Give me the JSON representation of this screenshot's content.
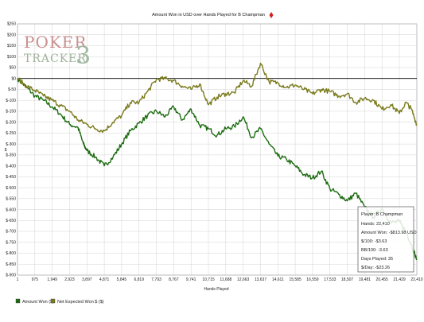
{
  "logo": {
    "word_top": "POKER",
    "word_bottom": "TRACKER",
    "version": "3"
  },
  "info_box": {
    "player": "Player: B Champman",
    "hands": "Hands: 22,410",
    "amount_won": "Amount Won: -$813.98 USD",
    "per_100": "$/100: -$3.63",
    "bb_per_100": "BB/100: -3.63",
    "days_played": "Days Played: 35",
    "per_day": "$/Day: -$23.26"
  },
  "colors": {
    "amount_won": "#1b6b0f",
    "ev_won": "#7a7a1c",
    "title_diamond": "#d42020",
    "grid": "#c8c8c8",
    "zero_line": "#000000"
  },
  "chart_data": {
    "type": "line",
    "title": "Amount Won in USD over Hands Played for B Champman",
    "xlabel": "Hands Played",
    "ylabel": "$",
    "xlim": [
      1,
      22410
    ],
    "ylim": [
      -900,
      250
    ],
    "grid": true,
    "legend_position": "bottom-left",
    "x_ticks": [
      1,
      975,
      1949,
      2923,
      3897,
      4871,
      5845,
      6819,
      7793,
      8767,
      9741,
      10715,
      11688,
      12663,
      13637,
      14611,
      15585,
      16559,
      17533,
      18507,
      19481,
      20455,
      21429,
      22410
    ],
    "x_tick_labels": [
      "1",
      "975",
      "1,949",
      "2,923",
      "3,897",
      "4,871",
      "5,845",
      "6,819",
      "7,793",
      "8,767",
      "9,741",
      "10,715",
      "11,688",
      "12,663",
      "13,637",
      "14,611",
      "15,585",
      "16,559",
      "17,533",
      "18,507",
      "19,481",
      "20,455",
      "21,429",
      "22,410"
    ],
    "y_ticks": [
      250,
      200,
      150,
      100,
      50,
      0,
      -50,
      -100,
      -150,
      -200,
      -250,
      -300,
      -350,
      -400,
      -450,
      -500,
      -550,
      -600,
      -650,
      -700,
      -750,
      -800,
      -850,
      -900
    ],
    "y_tick_labels": [
      "$250",
      "$200",
      "$150",
      "$100",
      "$50",
      "$0",
      "$-50",
      "$-100",
      "$-150",
      "$-200",
      "$-250",
      "$-300",
      "$-350",
      "$-400",
      "$-450",
      "$-500",
      "$-550",
      "$-600",
      "$-650",
      "$-700",
      "$-750",
      "$-800",
      "$-850",
      "$-900"
    ],
    "series": [
      {
        "name": "Amount Won ($)",
        "x": [
          1,
          500,
          975,
          1460,
          1949,
          2430,
          2923,
          3400,
          3700,
          3897,
          4380,
          4871,
          5360,
          5845,
          6330,
          6819,
          7300,
          7793,
          8280,
          8767,
          9250,
          9741,
          10230,
          10715,
          11200,
          11688,
          12170,
          12663,
          13150,
          13637,
          14120,
          14611,
          15100,
          15585,
          16070,
          16559,
          17050,
          17533,
          18020,
          18507,
          18990,
          19481,
          19970,
          20455,
          20950,
          21429,
          21800,
          22100,
          22410
        ],
        "y": [
          0,
          -40,
          -80,
          -100,
          -130,
          -165,
          -210,
          -225,
          -300,
          -330,
          -360,
          -400,
          -360,
          -300,
          -240,
          -205,
          -170,
          -150,
          -175,
          -130,
          -190,
          -140,
          -215,
          -230,
          -260,
          -230,
          -220,
          -175,
          -270,
          -230,
          -300,
          -355,
          -370,
          -400,
          -440,
          -455,
          -425,
          -505,
          -530,
          -560,
          -525,
          -590,
          -635,
          -595,
          -660,
          -655,
          -700,
          -760,
          -830
        ]
      },
      {
        "name": "Net Expected Won $ ($)",
        "x": [
          1,
          500,
          975,
          1460,
          1949,
          2430,
          2923,
          3400,
          3897,
          4380,
          4871,
          5360,
          5845,
          6330,
          6819,
          7300,
          7793,
          8280,
          8767,
          9250,
          9741,
          10230,
          10715,
          11200,
          11688,
          12170,
          12663,
          13150,
          13637,
          14120,
          14611,
          15100,
          15585,
          16070,
          16559,
          17050,
          17533,
          18020,
          18507,
          18990,
          19481,
          19970,
          20455,
          20950,
          21429,
          21800,
          22100,
          22410
        ],
        "y": [
          0,
          -35,
          -55,
          -80,
          -100,
          -125,
          -150,
          -190,
          -210,
          -230,
          -240,
          -200,
          -170,
          -110,
          -110,
          -60,
          -5,
          0,
          -10,
          -35,
          -50,
          -25,
          -120,
          -85,
          -70,
          -65,
          -10,
          -35,
          70,
          -15,
          -20,
          -40,
          -30,
          -50,
          -70,
          -50,
          -60,
          -80,
          -70,
          -110,
          -90,
          -100,
          -140,
          -120,
          -160,
          -110,
          -140,
          -210
        ]
      }
    ]
  }
}
